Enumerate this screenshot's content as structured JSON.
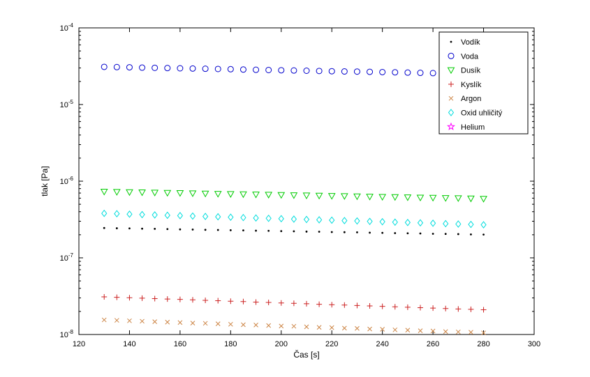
{
  "chart_data": {
    "type": "scatter",
    "title": "",
    "xlabel": "Čas [s]",
    "ylabel": "tlak [Pa]",
    "xlim": [
      120,
      300
    ],
    "ylim": [
      1e-08,
      0.0001
    ],
    "yscale": "log",
    "grid": false,
    "legend_position": "northeast",
    "xticks": [
      120,
      140,
      160,
      180,
      200,
      220,
      240,
      260,
      280,
      300
    ],
    "ytick_exponents": [
      -8,
      -7,
      -6,
      -5,
      -4
    ],
    "x": [
      130,
      135,
      140,
      145,
      150,
      155,
      160,
      165,
      170,
      175,
      180,
      185,
      190,
      195,
      200,
      205,
      210,
      215,
      220,
      225,
      230,
      235,
      240,
      245,
      250,
      255,
      260,
      265,
      270,
      275,
      280
    ],
    "series": [
      {
        "name": "Vodík",
        "marker": "point",
        "color": "#000000",
        "values": [
          2.45e-07,
          2.43e-07,
          2.42e-07,
          2.4e-07,
          2.39e-07,
          2.37e-07,
          2.35e-07,
          2.34e-07,
          2.32e-07,
          2.31e-07,
          2.29e-07,
          2.28e-07,
          2.26e-07,
          2.25e-07,
          2.23e-07,
          2.22e-07,
          2.2e-07,
          2.19e-07,
          2.17e-07,
          2.16e-07,
          2.15e-07,
          2.13e-07,
          2.12e-07,
          2.1e-07,
          2.09e-07,
          2.08e-07,
          2.06e-07,
          2.05e-07,
          2.04e-07,
          2.02e-07,
          2.01e-07
        ]
      },
      {
        "name": "Voda",
        "marker": "circle",
        "color": "#0000cc",
        "values": [
          3.1e-05,
          3.08e-05,
          3.06e-05,
          3.03e-05,
          3.01e-05,
          2.99e-05,
          2.97e-05,
          2.95e-05,
          2.93e-05,
          2.91e-05,
          2.89e-05,
          2.86e-05,
          2.84e-05,
          2.82e-05,
          2.8e-05,
          2.78e-05,
          2.76e-05,
          2.74e-05,
          2.72e-05,
          2.7e-05,
          2.69e-05,
          2.67e-05,
          2.65e-05,
          2.63e-05,
          2.61e-05,
          2.59e-05,
          2.57e-05,
          2.55e-05,
          2.54e-05,
          2.52e-05,
          2.5e-05
        ]
      },
      {
        "name": "Dusík",
        "marker": "triangle-down",
        "color": "#00cc00",
        "values": [
          7.3e-07,
          7.25e-07,
          7.2e-07,
          7.15e-07,
          7.1e-07,
          7.05e-07,
          7e-07,
          6.95e-07,
          6.9e-07,
          6.85e-07,
          6.8e-07,
          6.75e-07,
          6.71e-07,
          6.66e-07,
          6.61e-07,
          6.57e-07,
          6.52e-07,
          6.48e-07,
          6.43e-07,
          6.39e-07,
          6.34e-07,
          6.3e-07,
          6.25e-07,
          6.21e-07,
          6.17e-07,
          6.12e-07,
          6.08e-07,
          6.04e-07,
          6e-07,
          5.95e-07,
          5.9e-07
        ]
      },
      {
        "name": "Kyslík",
        "marker": "plus",
        "color": "#cc2222",
        "values": [
          3.1e-08,
          3.06e-08,
          3.02e-08,
          2.98e-08,
          2.94e-08,
          2.9e-08,
          2.87e-08,
          2.83e-08,
          2.79e-08,
          2.76e-08,
          2.72e-08,
          2.69e-08,
          2.65e-08,
          2.62e-08,
          2.58e-08,
          2.55e-08,
          2.52e-08,
          2.48e-08,
          2.45e-08,
          2.42e-08,
          2.39e-08,
          2.36e-08,
          2.33e-08,
          2.3e-08,
          2.27e-08,
          2.24e-08,
          2.21e-08,
          2.18e-08,
          2.15e-08,
          2.13e-08,
          2.1e-08
        ]
      },
      {
        "name": "Argon",
        "marker": "x",
        "color": "#cc8444",
        "values": [
          1.55e-08,
          1.53e-08,
          1.51e-08,
          1.49e-08,
          1.47e-08,
          1.45e-08,
          1.43e-08,
          1.41e-08,
          1.4e-08,
          1.38e-08,
          1.36e-08,
          1.34e-08,
          1.33e-08,
          1.31e-08,
          1.29e-08,
          1.28e-08,
          1.26e-08,
          1.24e-08,
          1.23e-08,
          1.21e-08,
          1.2e-08,
          1.18e-08,
          1.17e-08,
          1.15e-08,
          1.14e-08,
          1.12e-08,
          1.11e-08,
          1.09e-08,
          1.08e-08,
          1.07e-08,
          1.05e-08
        ]
      },
      {
        "name": "Oxid uhličitý",
        "marker": "diamond",
        "color": "#00dddd",
        "values": [
          3.8e-07,
          3.76e-07,
          3.71e-07,
          3.67e-07,
          3.63e-07,
          3.59e-07,
          3.55e-07,
          3.51e-07,
          3.47e-07,
          3.43e-07,
          3.39e-07,
          3.35e-07,
          3.31e-07,
          3.28e-07,
          3.24e-07,
          3.2e-07,
          3.17e-07,
          3.13e-07,
          3.1e-07,
          3.06e-07,
          3.03e-07,
          2.99e-07,
          2.96e-07,
          2.92e-07,
          2.89e-07,
          2.86e-07,
          2.83e-07,
          2.79e-07,
          2.76e-07,
          2.73e-07,
          2.7e-07
        ]
      },
      {
        "name": "Helium",
        "marker": "pentagram",
        "color": "#ff00ff",
        "values": []
      }
    ]
  }
}
